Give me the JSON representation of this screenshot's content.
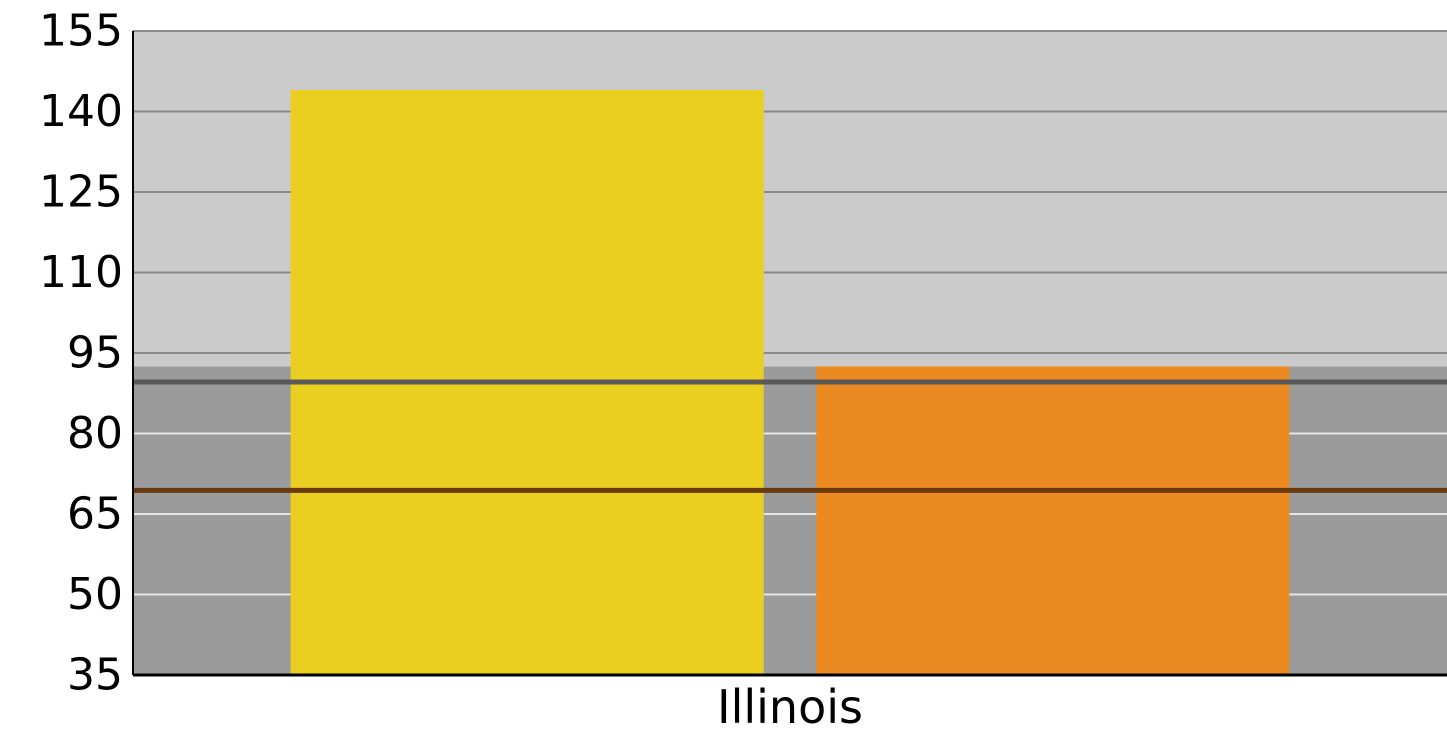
{
  "chart_data": {
    "type": "bar",
    "title": "",
    "xlabel": "",
    "ylabel": "",
    "categories": [
      "Illinois"
    ],
    "series": [
      {
        "values": [
          144
        ],
        "color": "#EACE20"
      },
      {
        "values": [
          92.5
        ],
        "color": "#EB8A20"
      }
    ],
    "ylim": [
      35,
      155
    ],
    "yticks": [
      155,
      140,
      125,
      110,
      95,
      80,
      65,
      50,
      35
    ],
    "grid": true,
    "background_bands": [
      {
        "from": 35,
        "to": 92.5,
        "color": "#9B9B9B"
      },
      {
        "from": 92.5,
        "to": 155,
        "color": "#CBCBCB"
      }
    ],
    "reference_lines": [
      {
        "value": 89.6,
        "color": "#5A5A5A"
      },
      {
        "value": 69.4,
        "color": "#6A3A10"
      }
    ]
  }
}
